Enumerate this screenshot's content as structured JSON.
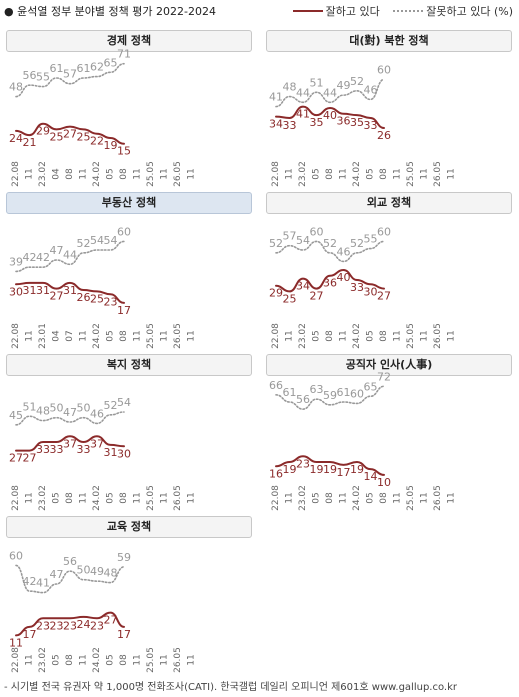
{
  "header": {
    "title": "● 윤석열 정부 분야별 정책 평가 2022-2024",
    "legend_good": "잘하고 있다",
    "legend_bad": "잘못하고 있다 (%)"
  },
  "footnote": "- 시기별 전국 유권자 약 1,000명 전화조사(CATI). 한국갤럽 데일리 오피니언 제601호 www.gallup.co.kr",
  "colors": {
    "good": "#8b2a2a",
    "bad": "#999999",
    "tick": "#666666"
  },
  "x_ticks": [
    "22.08",
    "11",
    "23.02",
    "05",
    "08",
    "11",
    "24.02",
    "05",
    "08",
    "11",
    "25.02",
    "05",
    "08",
    "11",
    "26.02",
    "05",
    "08",
    "11"
  ],
  "chart_data": [
    {
      "type": "line",
      "title": "경제 정책",
      "x_ticks": [
        "22.08",
        "11",
        "23.02",
        "04",
        "08",
        "11",
        "24.02",
        "05",
        "08",
        "11",
        "25.05",
        "11",
        "26.05",
        "11"
      ],
      "series": [
        {
          "name": "잘하고 있다",
          "values": [
            24,
            21,
            29,
            25,
            27,
            25,
            22,
            19,
            15
          ]
        },
        {
          "name": "잘못하고 있다",
          "values": [
            48,
            56,
            55,
            61,
            57,
            61,
            62,
            65,
            71
          ]
        }
      ]
    },
    {
      "type": "line",
      "title": "대(對) 북한 정책",
      "x_ticks": [
        "22.08",
        "11",
        "23.02",
        "05",
        "08",
        "11",
        "24.02",
        "05",
        "08",
        "11",
        "25.05",
        "11",
        "26.05",
        "11"
      ],
      "series": [
        {
          "name": "잘하고 있다",
          "values": [
            34,
            33,
            41,
            35,
            40,
            36,
            35,
            33,
            26
          ]
        },
        {
          "name": "잘못하고 있다",
          "values": [
            41,
            48,
            44,
            51,
            44,
            49,
            52,
            46,
            60
          ]
        }
      ]
    },
    {
      "type": "line",
      "title": "부동산 정책",
      "highlight": true,
      "x_ticks": [
        "22.08",
        "11",
        "23.01",
        "04",
        "07",
        "11",
        "24.02",
        "05",
        "08",
        "11",
        "25.05",
        "11",
        "26.05",
        "11"
      ],
      "series": [
        {
          "name": "잘하고 있다",
          "values": [
            30,
            31,
            31,
            27,
            31,
            26,
            25,
            23,
            17
          ]
        },
        {
          "name": "잘못하고 있다",
          "values": [
            39,
            42,
            42,
            47,
            44,
            52,
            54,
            54,
            60
          ]
        }
      ]
    },
    {
      "type": "line",
      "title": "외교 정책",
      "x_ticks": [
        "22.08",
        "11",
        "23.02",
        "05",
        "08",
        "11",
        "24.02",
        "05",
        "08",
        "11",
        "25.05",
        "11",
        "26.05",
        "11"
      ],
      "series": [
        {
          "name": "잘하고 있다",
          "values": [
            29,
            25,
            34,
            27,
            36,
            40,
            33,
            30,
            27
          ]
        },
        {
          "name": "잘못하고 있다",
          "values": [
            52,
            57,
            54,
            60,
            52,
            46,
            52,
            55,
            60
          ]
        }
      ]
    },
    {
      "type": "line",
      "title": "복지 정책",
      "x_ticks": [
        "22.08",
        "11",
        "23.02",
        "05",
        "08",
        "11",
        "24.02",
        "05",
        "08",
        "11",
        "25.05",
        "11",
        "26.05",
        "11"
      ],
      "series": [
        {
          "name": "잘하고 있다",
          "values": [
            27,
            27,
            33,
            33,
            37,
            33,
            37,
            31,
            30
          ]
        },
        {
          "name": "잘못하고 있다",
          "values": [
            45,
            51,
            48,
            50,
            47,
            50,
            46,
            52,
            54
          ]
        }
      ]
    },
    {
      "type": "line",
      "title": "공직자 인사(人事)",
      "x_ticks": [
        "22.08",
        "11",
        "23.02",
        "05",
        "08",
        "11",
        "24.02",
        "05",
        "08",
        "11",
        "25.05",
        "11",
        "26.05",
        "11"
      ],
      "series": [
        {
          "name": "잘하고 있다",
          "values": [
            16,
            19,
            23,
            19,
            19,
            17,
            19,
            14,
            10
          ]
        },
        {
          "name": "잘못하고 있다",
          "values": [
            66,
            61,
            56,
            63,
            59,
            61,
            60,
            65,
            72
          ]
        }
      ]
    },
    {
      "type": "line",
      "title": "교육 정책",
      "x_ticks": [
        "22.08",
        "11",
        "23.02",
        "05",
        "08",
        "11",
        "24.02",
        "05",
        "08",
        "11",
        "25.05",
        "11",
        "26.05",
        "11"
      ],
      "series": [
        {
          "name": "잘하고 있다",
          "values": [
            11,
            17,
            23,
            23,
            23,
            24,
            23,
            27,
            17
          ]
        },
        {
          "name": "잘못하고 있다",
          "values": [
            60,
            42,
            41,
            47,
            56,
            50,
            49,
            48,
            59
          ]
        }
      ]
    }
  ]
}
